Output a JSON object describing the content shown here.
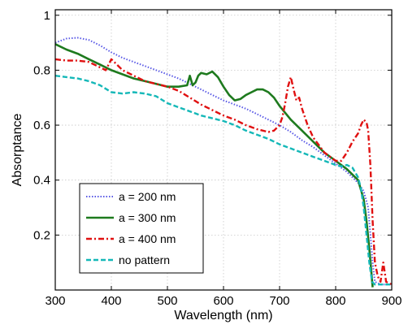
{
  "chart_data": {
    "type": "line",
    "title": "",
    "xlabel": "Wavelength (nm)",
    "ylabel": "Absorptance",
    "xlim": [
      300,
      900
    ],
    "ylim": [
      0,
      1.02
    ],
    "xticks": [
      "300",
      "400",
      "500",
      "600",
      "700",
      "800",
      "900"
    ],
    "yticks": [
      "0.2",
      "0.4",
      "0.6",
      "0.8",
      "1"
    ],
    "grid": true,
    "legend_position": "lower-left",
    "series": [
      {
        "name": "a = 200 nm",
        "color": "#5a5ae6",
        "style": "dotted",
        "x": [
          300,
          320,
          340,
          360,
          380,
          400,
          420,
          440,
          460,
          480,
          500,
          520,
          540,
          560,
          580,
          600,
          620,
          640,
          660,
          680,
          700,
          720,
          740,
          760,
          780,
          800,
          820,
          840,
          850,
          858,
          862,
          866,
          870,
          880,
          890,
          900
        ],
        "y": [
          0.9,
          0.915,
          0.918,
          0.91,
          0.89,
          0.865,
          0.845,
          0.83,
          0.815,
          0.8,
          0.785,
          0.77,
          0.75,
          0.73,
          0.71,
          0.69,
          0.675,
          0.66,
          0.64,
          0.62,
          0.6,
          0.575,
          0.545,
          0.52,
          0.49,
          0.46,
          0.43,
          0.39,
          0.36,
          0.3,
          0.2,
          0.1,
          0.03,
          0.02,
          0.02,
          0.02
        ]
      },
      {
        "name": "a = 300 nm",
        "color": "#1e7a1e",
        "style": "solid",
        "x": [
          300,
          320,
          340,
          360,
          380,
          400,
          420,
          440,
          460,
          480,
          500,
          520,
          535,
          540,
          545,
          550,
          555,
          560,
          570,
          580,
          590,
          600,
          610,
          620,
          630,
          640,
          650,
          660,
          670,
          680,
          690,
          700,
          720,
          740,
          760,
          780,
          800,
          820,
          840,
          850,
          855,
          860,
          863,
          866
        ],
        "y": [
          0.895,
          0.875,
          0.86,
          0.84,
          0.82,
          0.8,
          0.785,
          0.77,
          0.76,
          0.75,
          0.74,
          0.74,
          0.745,
          0.78,
          0.745,
          0.755,
          0.78,
          0.79,
          0.785,
          0.795,
          0.775,
          0.74,
          0.71,
          0.69,
          0.695,
          0.71,
          0.72,
          0.73,
          0.73,
          0.72,
          0.7,
          0.67,
          0.62,
          0.58,
          0.54,
          0.5,
          0.47,
          0.44,
          0.4,
          0.33,
          0.25,
          0.15,
          0.08,
          0.01
        ]
      },
      {
        "name": "a = 400 nm",
        "color": "#e01010",
        "style": "dashdot",
        "x": [
          300,
          320,
          340,
          360,
          380,
          390,
          400,
          410,
          420,
          440,
          460,
          480,
          500,
          520,
          540,
          560,
          580,
          600,
          620,
          640,
          660,
          680,
          690,
          700,
          705,
          710,
          715,
          720,
          725,
          730,
          735,
          740,
          750,
          760,
          780,
          800,
          810,
          820,
          830,
          840,
          845,
          850,
          855,
          858,
          862,
          866,
          870,
          875,
          880,
          885,
          890,
          900
        ],
        "y": [
          0.84,
          0.835,
          0.835,
          0.83,
          0.81,
          0.8,
          0.84,
          0.82,
          0.8,
          0.78,
          0.76,
          0.75,
          0.74,
          0.725,
          0.7,
          0.675,
          0.655,
          0.635,
          0.62,
          0.6,
          0.585,
          0.575,
          0.58,
          0.6,
          0.63,
          0.68,
          0.74,
          0.775,
          0.73,
          0.69,
          0.7,
          0.66,
          0.6,
          0.555,
          0.5,
          0.47,
          0.47,
          0.5,
          0.54,
          0.57,
          0.6,
          0.62,
          0.61,
          0.58,
          0.45,
          0.25,
          0.1,
          0.05,
          0.03,
          0.1,
          0.03,
          0.02
        ]
      },
      {
        "name": "no pattern",
        "color": "#15b8b8",
        "style": "dashed",
        "x": [
          300,
          320,
          340,
          360,
          380,
          400,
          420,
          440,
          460,
          480,
          500,
          520,
          540,
          560,
          580,
          600,
          620,
          640,
          660,
          680,
          700,
          720,
          740,
          760,
          780,
          800,
          810,
          820,
          830,
          840,
          845,
          850,
          855,
          860,
          865,
          870,
          880,
          890,
          900
        ],
        "y": [
          0.78,
          0.775,
          0.77,
          0.76,
          0.745,
          0.72,
          0.715,
          0.72,
          0.715,
          0.705,
          0.68,
          0.665,
          0.65,
          0.635,
          0.625,
          0.615,
          0.6,
          0.58,
          0.565,
          0.55,
          0.53,
          0.515,
          0.5,
          0.485,
          0.47,
          0.455,
          0.45,
          0.455,
          0.445,
          0.41,
          0.37,
          0.3,
          0.2,
          0.1,
          0.03,
          0.02,
          0.02,
          0.02,
          0.02
        ]
      }
    ]
  }
}
